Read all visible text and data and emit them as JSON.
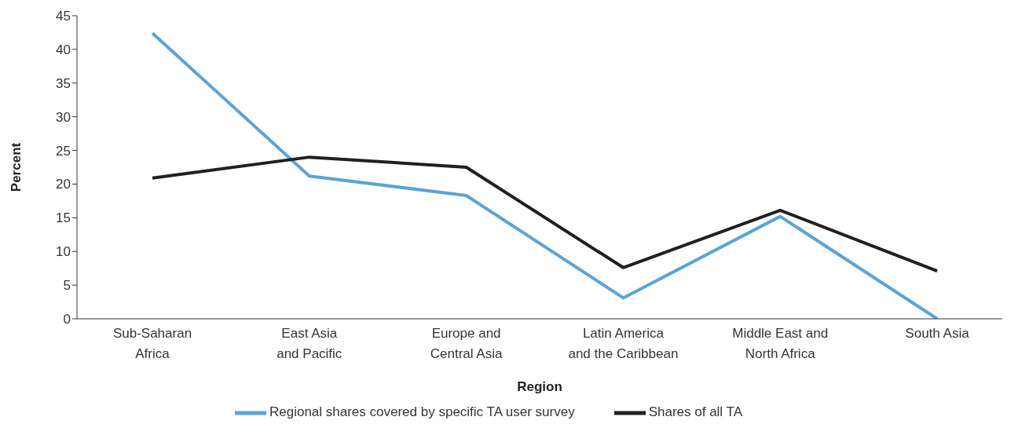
{
  "chart_data": {
    "type": "line",
    "xlabel": "Region",
    "ylabel": "Percent",
    "categories": [
      "Sub-Saharan\nAfrica",
      "East Asia\nand Pacific",
      "Europe and\nCentral Asia",
      "Latin America\nand the Caribbean",
      "Middle East and\nNorth Africa",
      "South Asia"
    ],
    "series": [
      {
        "name": "Regional shares covered by specific TA user survey",
        "color": "#5ba3d6",
        "values": [
          42.4,
          21.2,
          18.3,
          3.1,
          15.2,
          0
        ]
      },
      {
        "name": "Shares of all TA",
        "color": "#231f20",
        "values": [
          20.9,
          24.0,
          22.5,
          7.6,
          16.1,
          7.1
        ]
      }
    ],
    "ylim": [
      0,
      45
    ],
    "yticks": [
      0,
      5,
      10,
      15,
      20,
      25,
      30,
      35,
      40,
      45
    ],
    "grid": false,
    "legend": "bottom",
    "marker": "none",
    "line_style": "solid"
  }
}
